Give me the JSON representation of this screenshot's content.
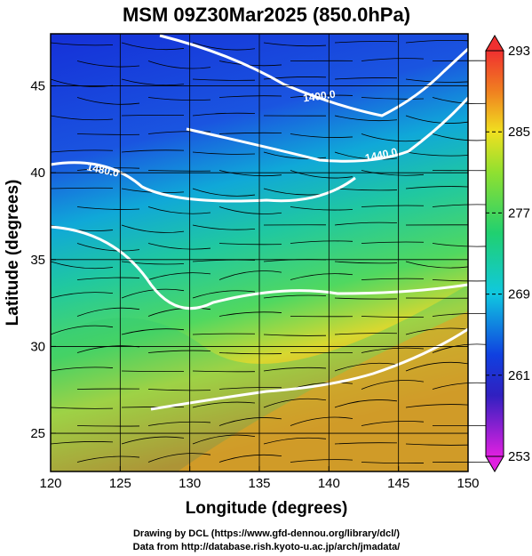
{
  "chart_data": {
    "type": "map",
    "title": "MSM 09Z30Mar2025 (850.0hPa)",
    "xlabel": "Longitude (degrees)",
    "ylabel": "Latitude  (degrees)",
    "xlim": [
      120,
      150
    ],
    "xticks": [
      120,
      125,
      130,
      135,
      140,
      145,
      150
    ],
    "ylim": [
      22.8,
      48
    ],
    "yticks": [
      25,
      30,
      35,
      40,
      45
    ],
    "clim": [
      253,
      293
    ],
    "cticks": [
      253,
      261,
      269,
      277,
      285,
      293
    ],
    "annotations": [
      "1400.0",
      "1440.0",
      "1480.0"
    ],
    "credits": [
      "Drawing by DCL (https://www.gfd-dennou.org/library/dcl/)",
      "Data from http://database.rish.kyoto-u.ac.jp/arch/jmadata/"
    ]
  }
}
